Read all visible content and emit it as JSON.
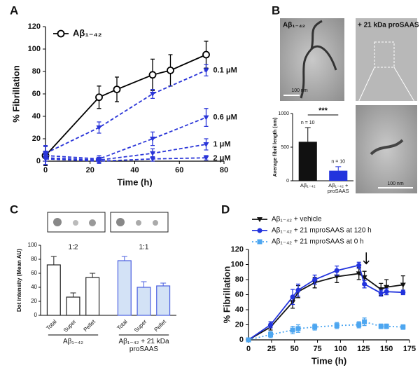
{
  "chart_data": [
    {
      "panel": "A",
      "type": "line",
      "xlabel": "Time (h)",
      "ylabel": "% Fibrillation",
      "xlim": [
        0,
        80
      ],
      "xticks": [
        0,
        20,
        40,
        60,
        80
      ],
      "ylim": [
        0,
        120
      ],
      "yticks": [
        0,
        20,
        40,
        60,
        80,
        100,
        120
      ],
      "series": [
        {
          "name": "Aβ₁₋₄₂",
          "color": "#000000",
          "dash": "solid",
          "marker": "open-circle",
          "x": [
            0,
            24,
            32,
            48,
            56,
            72
          ],
          "values": [
            5,
            57,
            64,
            77,
            81,
            95
          ],
          "error": [
            9,
            10,
            11,
            14,
            14,
            12
          ]
        },
        {
          "name": "0.1 μM",
          "color": "#2a35d8",
          "dash": "dashed",
          "marker": "triangle",
          "x": [
            0,
            24,
            48,
            72
          ],
          "values": [
            7,
            30,
            60,
            81
          ],
          "error": [
            7,
            5,
            4,
            5
          ]
        },
        {
          "name": "0.6 μM",
          "color": "#2a35d8",
          "dash": "dashed",
          "marker": "triangle",
          "x": [
            0,
            24,
            48,
            72
          ],
          "values": [
            5,
            2,
            20,
            39
          ],
          "error": [
            8,
            3,
            6,
            8
          ]
        },
        {
          "name": "1 μM",
          "color": "#2a35d8",
          "dash": "dashed",
          "marker": "triangle",
          "x": [
            0,
            24,
            48,
            72
          ],
          "values": [
            3,
            1,
            7,
            15
          ],
          "error": [
            6,
            2,
            4,
            5
          ]
        },
        {
          "name": "2 μM",
          "color": "#2a35d8",
          "dash": "dashed",
          "marker": "triangle",
          "x": [
            0,
            24,
            48,
            72
          ],
          "values": [
            2,
            0,
            2,
            3
          ],
          "error": [
            5,
            2,
            2,
            2
          ]
        }
      ]
    },
    {
      "panel": "B",
      "type": "bar",
      "ylabel": "Average fibril length (nm)",
      "categories": [
        "Aβ₁₋₄₂",
        "Aβ₁₋₄₂ + proSAAS"
      ],
      "values": [
        580,
        150
      ],
      "error": [
        210,
        60
      ],
      "colors": [
        "#111111",
        "#2233dd"
      ],
      "ylim": [
        0,
        1000
      ],
      "yticks": [
        0,
        500,
        1000
      ],
      "n_labels": [
        "n = 10",
        "n = 10"
      ],
      "significance": "***",
      "images": [
        {
          "label": "Aβ₁₋₄₂",
          "scale": "100 nm"
        },
        {
          "label": "+ 21 kDa proSAAS"
        },
        {
          "scale": "100 nm"
        }
      ]
    },
    {
      "panel": "C",
      "type": "bar",
      "ylabel": "Dot intensity (Mean AU)",
      "categories": [
        "Total",
        "Super",
        "Pellet",
        "Total",
        "Super",
        "Pellet"
      ],
      "values": [
        72,
        26,
        54,
        78,
        40,
        42
      ],
      "error": [
        12,
        6,
        6,
        6,
        8,
        4
      ],
      "ylim": [
        0,
        100
      ],
      "yticks": [
        0,
        20,
        40,
        60,
        80,
        100
      ],
      "groups": [
        {
          "label": "Aβ₁₋₄₂",
          "ratio": "1:2",
          "fill": "#ffffff",
          "stroke": "#222222"
        },
        {
          "label": "Aβ₁₋₄₂ + 21 kDa proSAAS",
          "ratio": "1:1",
          "fill": "#d3e2f6",
          "stroke": "#4a5fe0"
        }
      ]
    },
    {
      "panel": "D",
      "type": "line",
      "xlabel": "Time (h)",
      "ylabel": "% Fibrillation",
      "xlim": [
        0,
        175
      ],
      "xticks": [
        0,
        25,
        50,
        75,
        100,
        125,
        150,
        175
      ],
      "ylim": [
        0,
        120
      ],
      "yticks": [
        0,
        20,
        40,
        60,
        80,
        100,
        120
      ],
      "arrow_x": 128,
      "series": [
        {
          "name": "Aβ₁₋₄₂ + vehicle",
          "color": "#111111",
          "dash": "solid",
          "marker": "triangle",
          "x": [
            0,
            24,
            48,
            54,
            72,
            96,
            120,
            126,
            144,
            150,
            168
          ],
          "values": [
            0,
            17,
            50,
            64,
            76,
            84,
            88,
            83,
            67,
            70,
            73
          ],
          "error": [
            2,
            4,
            8,
            8,
            7,
            8,
            8,
            8,
            8,
            10,
            12
          ]
        },
        {
          "name": "Aβ₁₋₄₂ + 21 mproSAAS at 120 h",
          "color": "#2233dd",
          "dash": "solid",
          "marker": "circle",
          "x": [
            0,
            24,
            48,
            54,
            72,
            96,
            120,
            126,
            144,
            150,
            168
          ],
          "values": [
            0,
            20,
            57,
            66,
            80,
            92,
            99,
            74,
            62,
            64,
            63
          ],
          "error": [
            2,
            4,
            10,
            8,
            6,
            6,
            4,
            5,
            4,
            4,
            3
          ]
        },
        {
          "name": "Aβ₁₋₄₂ + 21 mproSAAS at 0 h",
          "color": "#4da6f0",
          "dash": "dotted",
          "marker": "square",
          "x": [
            0,
            24,
            48,
            54,
            72,
            96,
            120,
            126,
            144,
            150,
            168
          ],
          "values": [
            0,
            7,
            13,
            15,
            17,
            19,
            20,
            24,
            18,
            18,
            17
          ],
          "error": [
            1,
            4,
            5,
            5,
            4,
            4,
            4,
            5,
            3,
            3,
            3
          ]
        }
      ]
    }
  ]
}
